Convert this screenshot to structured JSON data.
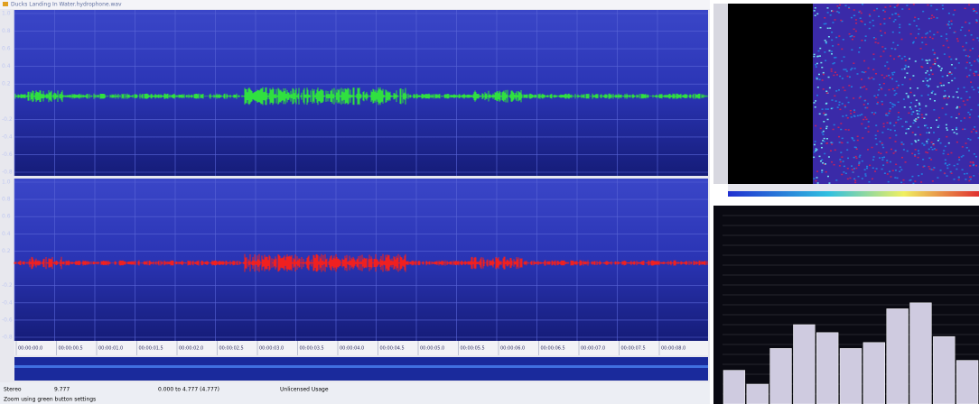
{
  "window": {
    "title": "Ducks Landing In Water.hydrophone.wav"
  },
  "waveform": {
    "channel_labels": [
      "1.0",
      "0.8",
      "0.6",
      "0.4",
      "0.2",
      "-0.2",
      "-0.4",
      "-0.6",
      "-0.8"
    ],
    "time_labels": [
      "00:00:00.0",
      "00:00:00.5",
      "00:00:01.0",
      "00:00:01.5",
      "00:00:02.0",
      "00:00:02.5",
      "00:00:03.0",
      "00:00:03.5",
      "00:00:04.0",
      "00:00:04.5",
      "00:00:05.0",
      "00:00:05.5",
      "00:00:06.0",
      "00:00:06.5",
      "00:00:07.0",
      "00:00:07.5",
      "00:00:08.0"
    ]
  },
  "status": {
    "mode": "Stereo",
    "length": "9.777",
    "selection": "0.000 to 4.777 (4.777)",
    "license": "Unlicensed Usage",
    "hint": "Zoom using green button settings"
  },
  "spectrum": {
    "values": [
      -83,
      -90,
      -72,
      -60,
      -64,
      -72,
      -69,
      -52,
      -49,
      -66,
      -78
    ],
    "ylim": [
      -100,
      0
    ],
    "color": "#cfcbe0"
  }
}
